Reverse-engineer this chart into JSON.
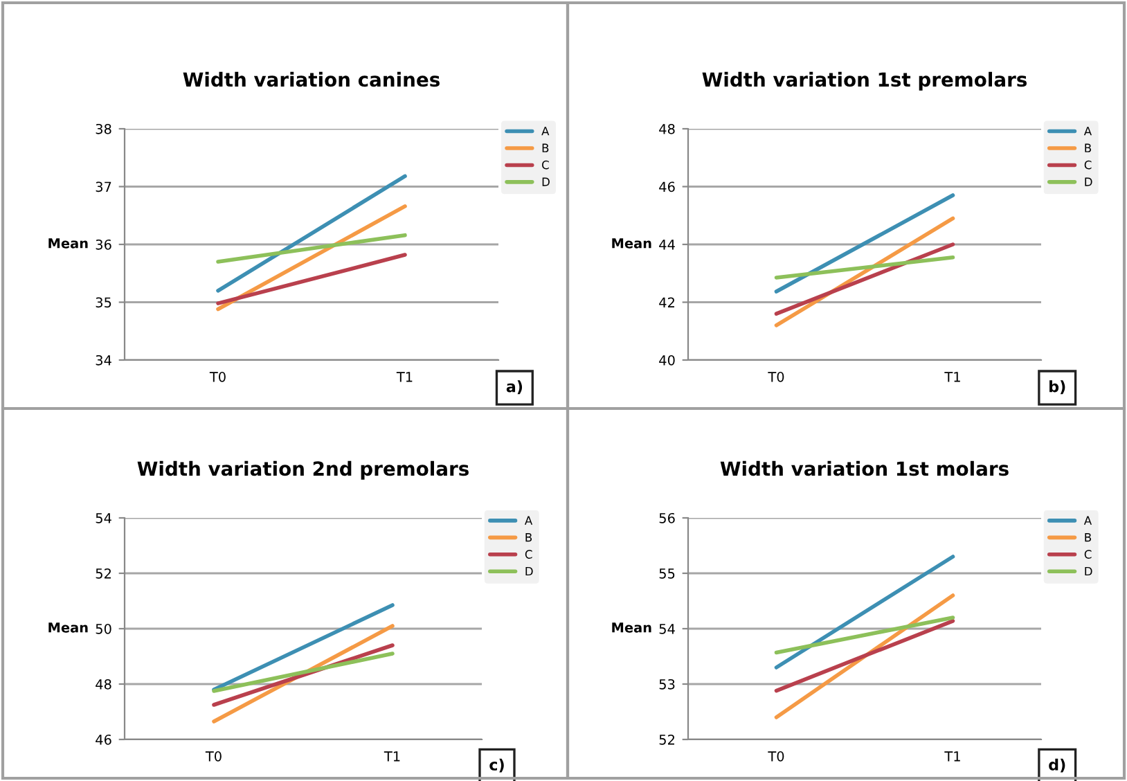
{
  "chart_data": [
    {
      "type": "line",
      "title": "Width variation canines",
      "ylabel": "Mean",
      "categories": [
        "T0",
        "T1"
      ],
      "ylim": [
        34,
        38
      ],
      "yticks": [
        34,
        35,
        36,
        37,
        38
      ],
      "grid": "y",
      "legend": "top right",
      "marker": "none",
      "line_style": "solid",
      "annotations": [
        "a)"
      ],
      "series": [
        {
          "name": "A",
          "color": "#3d8fb3",
          "values": [
            35.2,
            37.18
          ]
        },
        {
          "name": "B",
          "color": "#f59a45",
          "values": [
            34.88,
            36.66
          ]
        },
        {
          "name": "C",
          "color": "#b9404d",
          "values": [
            34.98,
            35.82
          ]
        },
        {
          "name": "D",
          "color": "#8dc05a",
          "values": [
            35.7,
            36.16
          ]
        }
      ]
    },
    {
      "type": "line",
      "title": "Width variation 1st premolars",
      "ylabel": "Mean",
      "categories": [
        "T0",
        "T1"
      ],
      "ylim": [
        40,
        48
      ],
      "yticks": [
        40,
        42,
        44,
        46,
        48
      ],
      "grid": "y",
      "legend": "top right",
      "marker": "none",
      "line_style": "solid",
      "annotations": [
        "b)"
      ],
      "series": [
        {
          "name": "A",
          "color": "#3d8fb3",
          "values": [
            42.37,
            45.7
          ]
        },
        {
          "name": "B",
          "color": "#f59a45",
          "values": [
            41.2,
            44.9
          ]
        },
        {
          "name": "C",
          "color": "#b9404d",
          "values": [
            41.6,
            44.0
          ]
        },
        {
          "name": "D",
          "color": "#8dc05a",
          "values": [
            42.85,
            43.55
          ]
        }
      ]
    },
    {
      "type": "line",
      "title": "Width variation 2nd premolars",
      "ylabel": "Mean",
      "categories": [
        "T0",
        "T1"
      ],
      "ylim": [
        46,
        54
      ],
      "yticks": [
        46,
        48,
        50,
        52,
        54
      ],
      "grid": "y",
      "legend": "top right",
      "marker": "none",
      "line_style": "solid",
      "annotations": [
        "c)"
      ],
      "series": [
        {
          "name": "A",
          "color": "#3d8fb3",
          "values": [
            47.8,
            50.85
          ]
        },
        {
          "name": "B",
          "color": "#f59a45",
          "values": [
            46.65,
            50.1
          ]
        },
        {
          "name": "C",
          "color": "#b9404d",
          "values": [
            47.25,
            49.4
          ]
        },
        {
          "name": "D",
          "color": "#8dc05a",
          "values": [
            47.75,
            49.1
          ]
        }
      ]
    },
    {
      "type": "line",
      "title": "Width variation 1st molars",
      "ylabel": "Mean",
      "categories": [
        "T0",
        "T1"
      ],
      "ylim": [
        52,
        56
      ],
      "yticks": [
        52,
        53,
        54,
        55,
        56
      ],
      "grid": "y",
      "legend": "top right",
      "marker": "none",
      "line_style": "solid",
      "annotations": [
        "d)"
      ],
      "series": [
        {
          "name": "A",
          "color": "#3d8fb3",
          "values": [
            53.3,
            55.3
          ]
        },
        {
          "name": "B",
          "color": "#f59a45",
          "values": [
            52.4,
            54.6
          ]
        },
        {
          "name": "C",
          "color": "#b9404d",
          "values": [
            52.88,
            54.14
          ]
        },
        {
          "name": "D",
          "color": "#8dc05a",
          "values": [
            53.57,
            54.2
          ]
        }
      ]
    }
  ]
}
